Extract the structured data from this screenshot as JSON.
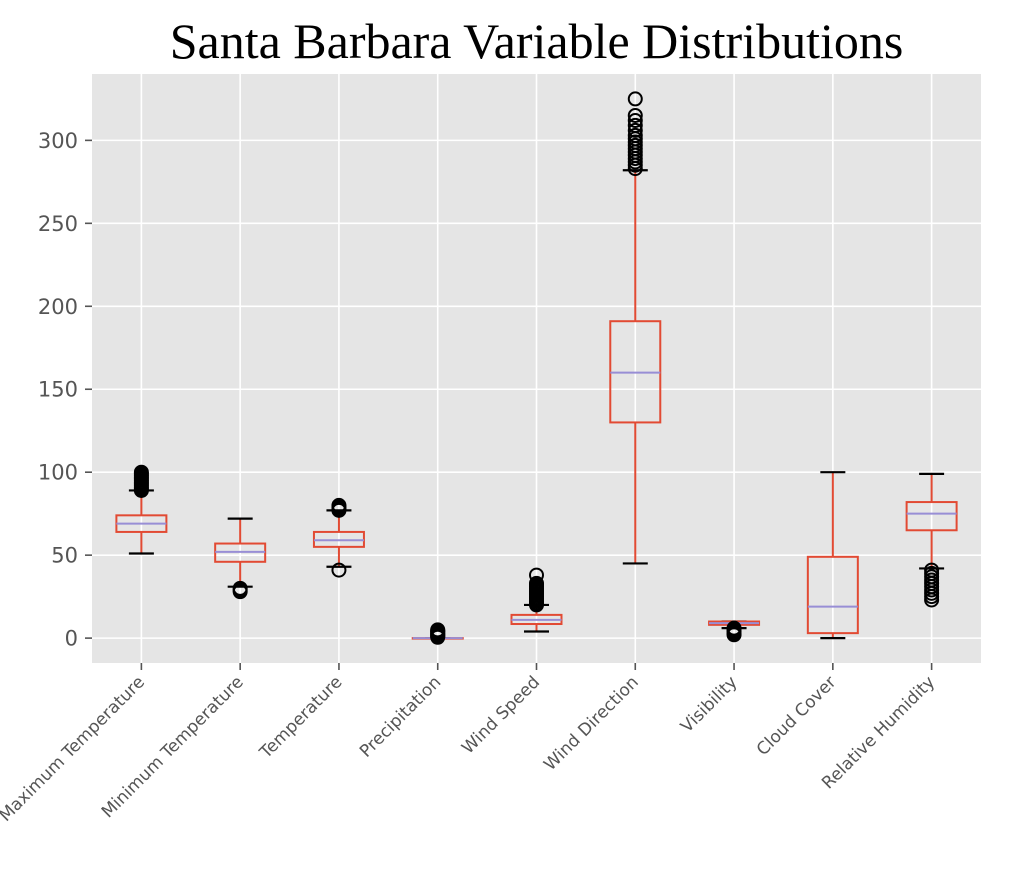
{
  "chart_data": {
    "type": "box",
    "title": "Santa Barbara Variable Distributions",
    "xlabel": "",
    "ylabel": "",
    "ylim": [
      -15,
      340
    ],
    "yticks": [
      0,
      50,
      100,
      150,
      200,
      250,
      300
    ],
    "grid": true,
    "colors": {
      "background": "#E5E5E5",
      "grid": "#FFFFFF",
      "box": "#E24A33",
      "median": "#988ED5",
      "caps": "#000000",
      "fliers": "#000000"
    },
    "categories": [
      "Maximum Temperature",
      "Minimum Temperature",
      "Temperature",
      "Precipitation",
      "Wind Speed",
      "Wind Direction",
      "Visibility",
      "Cloud Cover",
      "Relative Humidity"
    ],
    "boxes": [
      {
        "whisker_low": 51,
        "q1": 64,
        "median": 69,
        "q3": 74,
        "whisker_high": 89,
        "fliers": [
          89,
          90,
          91,
          92,
          93,
          94,
          95,
          96,
          97,
          98,
          99,
          100
        ]
      },
      {
        "whisker_low": 31,
        "q1": 46,
        "median": 52,
        "q3": 57,
        "whisker_high": 72,
        "fliers": [
          28,
          29,
          30
        ]
      },
      {
        "whisker_low": 43,
        "q1": 55,
        "median": 59,
        "q3": 64,
        "whisker_high": 77,
        "fliers": [
          41,
          77,
          78,
          79,
          80
        ]
      },
      {
        "whisker_low": 0,
        "q1": 0,
        "median": 0,
        "q3": 0,
        "whisker_high": 0,
        "fliers": [
          0.5,
          1,
          1.5,
          2,
          2.5,
          3,
          3.5,
          4,
          4.5,
          5
        ]
      },
      {
        "whisker_low": 4,
        "q1": 8.5,
        "median": 11,
        "q3": 14,
        "whisker_high": 20,
        "fliers": [
          20,
          21,
          22,
          23,
          24,
          25,
          26,
          27,
          28,
          29,
          30,
          31,
          32,
          33,
          38
        ]
      },
      {
        "whisker_low": 45,
        "q1": 130,
        "median": 160,
        "q3": 191,
        "whisker_high": 282,
        "fliers": [
          283,
          285,
          287,
          289,
          291,
          293,
          295,
          297,
          299,
          301,
          303,
          306,
          309,
          312,
          315,
          325
        ]
      },
      {
        "whisker_low": 6,
        "q1": 8,
        "median": 9,
        "q3": 10,
        "whisker_high": 10,
        "fliers": [
          2,
          3,
          4,
          5,
          6
        ]
      },
      {
        "whisker_low": 0,
        "q1": 3,
        "median": 19,
        "q3": 49,
        "whisker_high": 100,
        "fliers": []
      },
      {
        "whisker_low": 42,
        "q1": 65,
        "median": 75,
        "q3": 82,
        "whisker_high": 99,
        "fliers": [
          23,
          25,
          27,
          29,
          31,
          33,
          35,
          37,
          39,
          41
        ]
      }
    ]
  }
}
